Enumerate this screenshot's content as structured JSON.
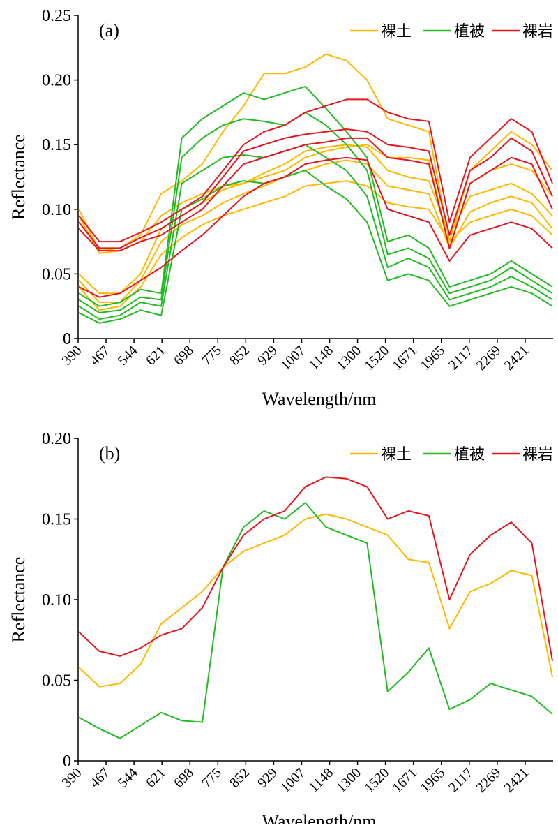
{
  "chart_data": [
    {
      "type": "line",
      "panel_label": "(a)",
      "xlabel": "Wavelength/nm",
      "ylabel": "Reflectance",
      "ylim": [
        0,
        0.25
      ],
      "y_ticks": [
        "0",
        "0.05",
        "0.10",
        "0.15",
        "0.20",
        "0.25"
      ],
      "x_tick_labels": [
        "390",
        "467",
        "544",
        "621",
        "698",
        "775",
        "852",
        "929",
        "1007",
        "1148",
        "1300",
        "1520",
        "1671",
        "1965",
        "2117",
        "2269",
        "2421"
      ],
      "legend": [
        "裸土",
        "植被",
        "裸岩"
      ],
      "legend_placement": "top-right",
      "grid": false,
      "series": [
        {
          "name": "裸土",
          "color": "#FFB800",
          "values": [
            0.1,
            0.068,
            0.07,
            0.08,
            0.112,
            0.122,
            0.135,
            0.16,
            0.18,
            0.205,
            0.205,
            0.21,
            0.22,
            0.215,
            0.2,
            0.17,
            0.165,
            0.16,
            0.075,
            0.13,
            0.145,
            0.16,
            0.15,
            0.13
          ]
        },
        {
          "name": "裸土",
          "color": "#FFB800",
          "values": [
            0.095,
            0.066,
            0.068,
            0.075,
            0.095,
            0.105,
            0.112,
            0.118,
            0.12,
            0.125,
            0.13,
            0.14,
            0.145,
            0.148,
            0.15,
            0.14,
            0.14,
            0.138,
            0.07,
            0.12,
            0.13,
            0.135,
            0.13,
            0.11
          ]
        },
        {
          "name": "裸土",
          "color": "#FFB800",
          "values": [
            0.05,
            0.035,
            0.035,
            0.05,
            0.085,
            0.095,
            0.105,
            0.115,
            0.12,
            0.128,
            0.135,
            0.145,
            0.148,
            0.15,
            0.148,
            0.13,
            0.125,
            0.122,
            0.08,
            0.11,
            0.115,
            0.12,
            0.112,
            0.095
          ]
        },
        {
          "name": "裸土",
          "color": "#FFB800",
          "values": [
            0.045,
            0.028,
            0.028,
            0.045,
            0.075,
            0.088,
            0.095,
            0.105,
            0.112,
            0.118,
            0.125,
            0.13,
            0.135,
            0.138,
            0.135,
            0.118,
            0.115,
            0.112,
            0.07,
            0.098,
            0.105,
            0.11,
            0.105,
            0.085
          ]
        },
        {
          "name": "裸土",
          "color": "#FFB800",
          "values": [
            0.04,
            0.022,
            0.025,
            0.04,
            0.065,
            0.078,
            0.088,
            0.095,
            0.1,
            0.105,
            0.11,
            0.118,
            0.12,
            0.122,
            0.118,
            0.105,
            0.102,
            0.1,
            0.075,
            0.09,
            0.095,
            0.1,
            0.095,
            0.08
          ]
        },
        {
          "name": "植被",
          "color": "#22BB22",
          "values": [
            0.035,
            0.025,
            0.028,
            0.038,
            0.035,
            0.155,
            0.17,
            0.18,
            0.19,
            0.185,
            0.19,
            0.195,
            0.178,
            0.16,
            0.14,
            0.075,
            0.08,
            0.07,
            0.04,
            0.045,
            0.05,
            0.06,
            0.05,
            0.04
          ]
        },
        {
          "name": "植被",
          "color": "#22BB22",
          "values": [
            0.03,
            0.02,
            0.022,
            0.032,
            0.03,
            0.14,
            0.155,
            0.165,
            0.17,
            0.168,
            0.165,
            0.175,
            0.165,
            0.15,
            0.13,
            0.065,
            0.07,
            0.062,
            0.035,
            0.04,
            0.045,
            0.055,
            0.045,
            0.035
          ]
        },
        {
          "name": "植被",
          "color": "#22BB22",
          "values": [
            0.025,
            0.015,
            0.018,
            0.028,
            0.025,
            0.12,
            0.13,
            0.14,
            0.142,
            0.14,
            0.145,
            0.15,
            0.14,
            0.13,
            0.11,
            0.055,
            0.062,
            0.055,
            0.03,
            0.035,
            0.04,
            0.048,
            0.04,
            0.03
          ]
        },
        {
          "name": "植被",
          "color": "#22BB22",
          "values": [
            0.02,
            0.012,
            0.015,
            0.022,
            0.018,
            0.1,
            0.108,
            0.118,
            0.122,
            0.12,
            0.125,
            0.13,
            0.118,
            0.108,
            0.09,
            0.045,
            0.05,
            0.045,
            0.025,
            0.03,
            0.035,
            0.04,
            0.035,
            0.025
          ]
        },
        {
          "name": "裸岩",
          "color": "#E8141E",
          "values": [
            0.095,
            0.075,
            0.075,
            0.082,
            0.09,
            0.1,
            0.11,
            0.13,
            0.15,
            0.16,
            0.165,
            0.175,
            0.18,
            0.185,
            0.185,
            0.175,
            0.17,
            0.168,
            0.09,
            0.14,
            0.155,
            0.17,
            0.16,
            0.12
          ]
        },
        {
          "name": "裸岩",
          "color": "#E8141E",
          "values": [
            0.09,
            0.07,
            0.07,
            0.078,
            0.085,
            0.095,
            0.105,
            0.125,
            0.145,
            0.15,
            0.155,
            0.158,
            0.16,
            0.162,
            0.16,
            0.15,
            0.148,
            0.145,
            0.08,
            0.13,
            0.14,
            0.155,
            0.145,
            0.11
          ]
        },
        {
          "name": "裸岩",
          "color": "#E8141E",
          "values": [
            0.085,
            0.068,
            0.068,
            0.075,
            0.08,
            0.09,
            0.1,
            0.118,
            0.135,
            0.14,
            0.145,
            0.15,
            0.152,
            0.155,
            0.155,
            0.14,
            0.138,
            0.135,
            0.07,
            0.12,
            0.13,
            0.14,
            0.135,
            0.1
          ]
        },
        {
          "name": "裸岩",
          "color": "#E8141E",
          "values": [
            0.04,
            0.032,
            0.035,
            0.045,
            0.055,
            0.068,
            0.08,
            0.095,
            0.11,
            0.12,
            0.125,
            0.135,
            0.138,
            0.14,
            0.138,
            0.1,
            0.095,
            0.09,
            0.06,
            0.08,
            0.085,
            0.09,
            0.085,
            0.07
          ]
        }
      ]
    },
    {
      "type": "line",
      "panel_label": "(b)",
      "xlabel": "Wavelength/nm",
      "ylabel": "Reflectance",
      "ylim": [
        0,
        0.2
      ],
      "y_ticks": [
        "0",
        "0.05",
        "0.10",
        "0.15",
        "0.20"
      ],
      "x_tick_labels": [
        "390",
        "467",
        "544",
        "621",
        "698",
        "775",
        "852",
        "929",
        "1007",
        "1148",
        "1300",
        "1520",
        "1671",
        "1965",
        "2117",
        "2269",
        "2421"
      ],
      "legend": [
        "裸土",
        "植被",
        "裸岩"
      ],
      "legend_placement": "top-right",
      "grid": false,
      "series": [
        {
          "name": "裸土",
          "color": "#FFB800",
          "values": [
            0.058,
            0.046,
            0.048,
            0.06,
            0.085,
            0.095,
            0.105,
            0.12,
            0.13,
            0.135,
            0.14,
            0.15,
            0.153,
            0.15,
            0.145,
            0.14,
            0.125,
            0.123,
            0.082,
            0.105,
            0.11,
            0.118,
            0.115,
            0.052
          ]
        },
        {
          "name": "植被",
          "color": "#22BB22",
          "values": [
            0.027,
            0.02,
            0.014,
            0.022,
            0.03,
            0.025,
            0.024,
            0.12,
            0.145,
            0.155,
            0.15,
            0.16,
            0.145,
            0.14,
            0.135,
            0.043,
            0.055,
            0.07,
            0.032,
            0.038,
            0.048,
            0.044,
            0.04,
            0.029
          ]
        },
        {
          "name": "裸岩",
          "color": "#E8141E",
          "values": [
            0.08,
            0.068,
            0.065,
            0.07,
            0.078,
            0.082,
            0.095,
            0.12,
            0.14,
            0.15,
            0.155,
            0.17,
            0.176,
            0.175,
            0.17,
            0.15,
            0.155,
            0.152,
            0.1,
            0.128,
            0.14,
            0.148,
            0.135,
            0.062
          ]
        }
      ]
    }
  ]
}
